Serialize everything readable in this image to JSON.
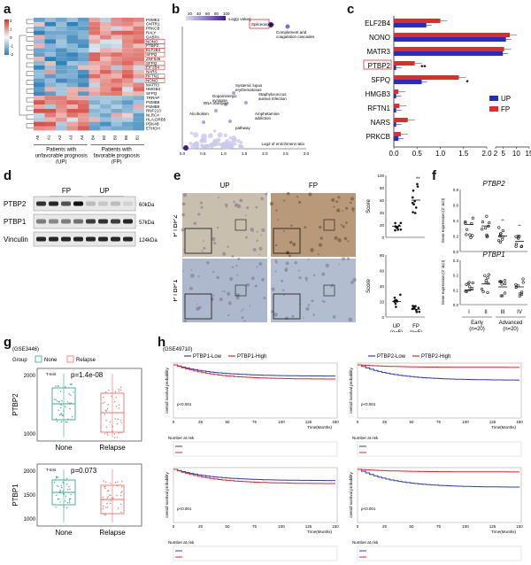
{
  "panels": {
    "a": "a",
    "b": "b",
    "c": "c",
    "d": "d",
    "e": "e",
    "f": "f",
    "g": "g",
    "h": "h"
  },
  "heatmap": {
    "columns": [
      "A5",
      "A1",
      "A2",
      "A3",
      "A4",
      "B4",
      "B2",
      "B3",
      "B5",
      "B1"
    ],
    "genes": [
      "PSME4",
      "CMTR1",
      "PRKCB",
      "RALY",
      "GABPA",
      "NONO",
      "PTBP2",
      "ELF2B4",
      "SFPQ",
      "ZNF536",
      "SFPQ",
      "EIF2B4",
      "NARS",
      "RFTN1",
      "NONO",
      "MATR3",
      "HMGB3",
      "SFPQ",
      "TRRAP",
      "PSMB8",
      "PSMB9",
      "RNF213",
      "NLRC4",
      "HLA-DRB5",
      "PDK4B",
      "ETHOH"
    ],
    "group_up": "Patients with\nunfavorable prognosis\n(UP)",
    "group_fp": "Patients with\nfavorable prognosis\n(FP)",
    "colorbar_ticks": [
      "2",
      "1",
      "0",
      "-1",
      "-2"
    ],
    "colors": {
      "high": "#d73027",
      "low": "#2c7fb8",
      "mid": "#f7f7f7"
    }
  },
  "enrichment": {
    "colorbar_label": "-Log(p value)",
    "colorbar_ticks": [
      "20",
      "40",
      "60",
      "80",
      "100"
    ],
    "x_label": "Log2 of enrichment ratio",
    "x_ticks": [
      "0.0",
      "0.5",
      "1.0",
      "1.5",
      "2.0",
      "2.5",
      "3.0"
    ],
    "terms": [
      "Spliceosome",
      "Complement and\ncoagulation cascades",
      "Systemic lupus\nerythematosus",
      "Staphylococcus\naureus infection",
      "Dopaminergic\nsynapse",
      "RNA transport",
      "Alcoholism",
      "Amphetamine\naddiction",
      "pathway",
      "Prion diseases"
    ]
  },
  "chart_data": [
    {
      "type": "bar",
      "panel": "c",
      "categories": [
        "ELF2B4",
        "NONO",
        "MATR3",
        "PTBP2",
        "SFPQ",
        "HMGB3",
        "RFTN1",
        "NARS",
        "PRKCB"
      ],
      "series": [
        {
          "name": "UP",
          "values": [
            0.7,
            6.0,
            4.8,
            0.05,
            0.6,
            0.05,
            0.05,
            0.05,
            0.1
          ]
        },
        {
          "name": "FP",
          "values": [
            1.0,
            7.5,
            5.3,
            0.45,
            1.4,
            0.1,
            0.12,
            0.3,
            0.15
          ]
        }
      ],
      "annotations": [
        "**",
        "*"
      ],
      "x_ticks": [
        "0.0",
        "0.5",
        "1.0",
        "1.5",
        "2.0",
        "2",
        "5",
        "10",
        "15"
      ],
      "legend": "lower-right",
      "colors": {
        "UP": "#1f2fbf",
        "FP": "#e32b2b"
      }
    },
    {
      "type": "scatter",
      "panel": "e",
      "ylabel": "Score",
      "sub": [
        {
          "title": "PTBP2",
          "categories": [
            "UP",
            "FP"
          ],
          "ylim": [
            0,
            100
          ],
          "ticks": [
            "0",
            "20",
            "40",
            "60",
            "80",
            "100"
          ],
          "means": [
            18,
            60
          ]
        },
        {
          "title": "PTBP1",
          "categories": [
            "UP",
            "FP"
          ],
          "ylim": [
            0,
            80
          ],
          "ticks": [
            "0",
            "20",
            "40",
            "60",
            "80"
          ],
          "means": [
            20,
            10
          ]
        }
      ],
      "x_labels": [
        "UP\n(n=5)",
        "FP\n(n=5)"
      ],
      "annotations": [
        "**"
      ]
    },
    {
      "type": "scatter",
      "panel": "f",
      "ylabel": "Gene expression (2⁻ΔCt)",
      "sub": [
        {
          "title": "PTBP2",
          "ylim": [
            0,
            0.8
          ],
          "ticks": [
            "0.0",
            "0.2",
            "0.4",
            "0.6",
            "0.8"
          ],
          "means": [
            0.35,
            0.33,
            0.2,
            0.13
          ]
        },
        {
          "title": "PTBP1",
          "ylim": [
            0,
            0.3
          ],
          "ticks": [
            "0.0",
            "0.1",
            "0.2",
            "0.3"
          ],
          "means": [
            0.1,
            0.14,
            0.12,
            0.12
          ]
        }
      ],
      "categories": [
        "I",
        "II",
        "III",
        "IV"
      ],
      "groups": [
        "Early\n(n=20)",
        "Advanced\n(n=20)"
      ],
      "annotations": [
        "**",
        "**"
      ]
    },
    {
      "type": "box",
      "panel": "g",
      "dataset": "(GSE3446)",
      "legend_title": "Group",
      "legend": [
        "None",
        "Relapse"
      ],
      "sub": [
        {
          "ylabel": "PTBP2",
          "p": "p=1.4e-08",
          "test": "T-test",
          "ticks": [
            "1000",
            "2000"
          ]
        },
        {
          "ylabel": "PTBP1",
          "p": "p=0.073",
          "test": "T-test",
          "ticks": [
            "1000",
            "1500",
            "2000"
          ]
        }
      ],
      "categories": [
        "None",
        "Relapse"
      ],
      "colors": {
        "None": "#3aa889",
        "Relapse": "#e8736b"
      }
    },
    {
      "type": "line",
      "panel": "h",
      "dataset": "(GSE49710)",
      "legend_left": [
        "PTBP1-Low",
        "PTBP1-High"
      ],
      "legend_right": [
        "PTBP2-Low",
        "PTBP2-High"
      ],
      "p_values": [
        "p<0.001",
        "p<0.001",
        "p<0.001",
        "p<0.001"
      ],
      "x_label": "Time(Months)",
      "y_label": "overall survival probability",
      "risk_label": "Number at risk",
      "x_ticks": [
        "0",
        "25",
        "50",
        "75",
        "100",
        "125",
        "150"
      ],
      "colors": {
        "Low": "#2b3fb0",
        "High": "#e3232b"
      }
    }
  ],
  "western": {
    "groups": [
      "FP",
      "UP"
    ],
    "rows": [
      "PTBP2",
      "PTBP1",
      "Vinculin"
    ],
    "sizes": [
      "60kDa",
      "57kDa",
      "124kDa"
    ]
  },
  "ihc": {
    "cols": [
      "UP",
      "FP"
    ],
    "rows": [
      "PTBP2",
      "PTBP1"
    ]
  }
}
